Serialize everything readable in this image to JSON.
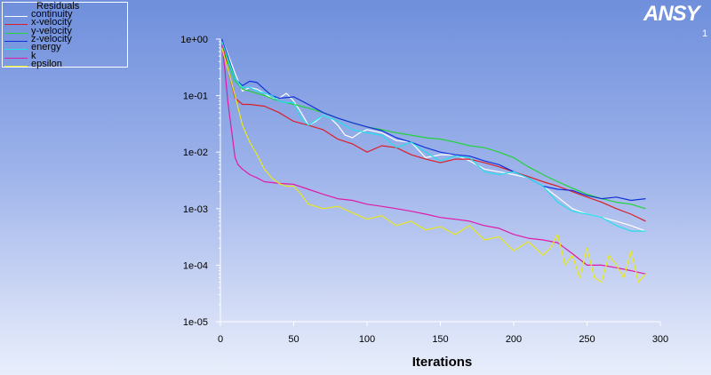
{
  "logo": {
    "text": "ANSY",
    "sub": "1"
  },
  "chart_data": {
    "type": "line",
    "title": "Residuals",
    "xlabel": "Iterations",
    "ylabel": "",
    "xlim": [
      0,
      300
    ],
    "ylim": [
      1e-05,
      1
    ],
    "yscale": "log",
    "grid": false,
    "legend_position": "top-left",
    "x_ticks": [
      "0",
      "50",
      "100",
      "150",
      "200",
      "250",
      "300"
    ],
    "y_ticks": [
      "1e+00",
      "1e-01",
      "1e-02",
      "1e-03",
      "1e-04",
      "1e-05"
    ],
    "series": [
      {
        "name": "continuity",
        "color": "#ffffff",
        "x": [
          1,
          5,
          10,
          15,
          20,
          25,
          30,
          35,
          40,
          45,
          50,
          55,
          60,
          65,
          70,
          75,
          80,
          85,
          90,
          95,
          100,
          110,
          120,
          130,
          140,
          150,
          160,
          170,
          180,
          190,
          200,
          210,
          220,
          230,
          240,
          250,
          260,
          270,
          280,
          290
        ],
        "y": [
          1.0,
          0.55,
          0.25,
          0.12,
          0.14,
          0.13,
          0.11,
          0.09,
          0.09,
          0.11,
          0.08,
          0.05,
          0.03,
          0.035,
          0.045,
          0.04,
          0.03,
          0.02,
          0.018,
          0.022,
          0.025,
          0.022,
          0.016,
          0.015,
          0.008,
          0.009,
          0.009,
          0.007,
          0.005,
          0.0045,
          0.004,
          0.0035,
          0.0025,
          0.0016,
          0.001,
          0.0008,
          0.0007,
          0.0006,
          0.0005,
          0.0004
        ]
      },
      {
        "name": "x-velocity",
        "color": "#dc1e2a",
        "x": [
          1,
          5,
          10,
          15,
          20,
          30,
          40,
          50,
          60,
          70,
          80,
          90,
          100,
          110,
          120,
          130,
          140,
          150,
          160,
          170,
          180,
          190,
          200,
          210,
          220,
          230,
          240,
          250,
          260,
          270,
          280,
          290
        ],
        "y": [
          1.0,
          0.3,
          0.09,
          0.07,
          0.07,
          0.065,
          0.05,
          0.035,
          0.03,
          0.025,
          0.017,
          0.014,
          0.01,
          0.013,
          0.012,
          0.009,
          0.0075,
          0.0065,
          0.0075,
          0.0075,
          0.0065,
          0.0055,
          0.0045,
          0.0037,
          0.003,
          0.0025,
          0.002,
          0.0016,
          0.0013,
          0.001,
          0.0008,
          0.0006
        ]
      },
      {
        "name": "y-velocity",
        "color": "#22d33a",
        "x": [
          1,
          5,
          10,
          15,
          20,
          30,
          40,
          50,
          60,
          70,
          80,
          90,
          100,
          110,
          120,
          130,
          140,
          150,
          160,
          170,
          180,
          190,
          200,
          210,
          220,
          230,
          240,
          250,
          260,
          270,
          280,
          290
        ],
        "y": [
          1.0,
          0.4,
          0.18,
          0.13,
          0.12,
          0.1,
          0.08,
          0.07,
          0.06,
          0.05,
          0.04,
          0.033,
          0.028,
          0.025,
          0.022,
          0.02,
          0.018,
          0.017,
          0.015,
          0.013,
          0.012,
          0.01,
          0.008,
          0.0055,
          0.004,
          0.003,
          0.0023,
          0.0018,
          0.0015,
          0.0013,
          0.0012,
          0.001
        ]
      },
      {
        "name": "z-velocity",
        "color": "#1230d8",
        "x": [
          1,
          5,
          10,
          15,
          20,
          25,
          30,
          35,
          40,
          50,
          60,
          70,
          80,
          90,
          100,
          110,
          120,
          130,
          140,
          150,
          160,
          170,
          180,
          190,
          200,
          210,
          220,
          230,
          240,
          250,
          260,
          270,
          280,
          290
        ],
        "y": [
          1.0,
          0.5,
          0.2,
          0.15,
          0.18,
          0.17,
          0.13,
          0.1,
          0.09,
          0.095,
          0.07,
          0.05,
          0.04,
          0.033,
          0.028,
          0.024,
          0.018,
          0.015,
          0.012,
          0.01,
          0.009,
          0.0085,
          0.007,
          0.006,
          0.0045,
          0.0035,
          0.0025,
          0.0022,
          0.0021,
          0.0017,
          0.0015,
          0.0016,
          0.0014,
          0.0015
        ]
      },
      {
        "name": "energy",
        "color": "#22e0e8",
        "x": [
          1,
          5,
          10,
          15,
          20,
          25,
          30,
          35,
          40,
          45,
          50,
          55,
          60,
          70,
          80,
          90,
          100,
          110,
          120,
          130,
          140,
          150,
          160,
          170,
          180,
          190,
          200,
          210,
          220,
          230,
          240,
          250,
          260,
          270,
          280,
          290
        ],
        "y": [
          0.9,
          0.45,
          0.2,
          0.14,
          0.14,
          0.12,
          0.11,
          0.1,
          0.08,
          0.075,
          0.075,
          0.04,
          0.03,
          0.045,
          0.035,
          0.025,
          0.022,
          0.02,
          0.012,
          0.015,
          0.01,
          0.007,
          0.0085,
          0.008,
          0.0045,
          0.004,
          0.0045,
          0.0035,
          0.0025,
          0.0013,
          0.0009,
          0.0008,
          0.0007,
          0.0005,
          0.0004,
          0.0004
        ]
      },
      {
        "name": "k",
        "color": "#e01aa8",
        "x": [
          1,
          3,
          5,
          8,
          10,
          12,
          15,
          20,
          25,
          30,
          40,
          50,
          60,
          70,
          80,
          90,
          100,
          110,
          120,
          130,
          140,
          150,
          160,
          170,
          180,
          190,
          200,
          210,
          220,
          230,
          240,
          250,
          260,
          270,
          280,
          290
        ],
        "y": [
          0.8,
          0.3,
          0.08,
          0.02,
          0.008,
          0.006,
          0.005,
          0.004,
          0.0035,
          0.003,
          0.0028,
          0.0027,
          0.0022,
          0.0018,
          0.0015,
          0.0014,
          0.0012,
          0.0011,
          0.001,
          0.0009,
          0.0008,
          0.0007,
          0.00065,
          0.0006,
          0.0005,
          0.00045,
          0.00035,
          0.0003,
          0.00028,
          0.00025,
          0.00016,
          0.0001,
          0.0001,
          9e-05,
          8e-05,
          7e-05
        ]
      },
      {
        "name": "epsilon",
        "color": "#e8e81c",
        "x": [
          1,
          5,
          10,
          15,
          20,
          25,
          30,
          35,
          40,
          45,
          50,
          55,
          60,
          70,
          80,
          90,
          100,
          110,
          120,
          130,
          140,
          150,
          160,
          170,
          180,
          190,
          200,
          210,
          220,
          225,
          230,
          235,
          240,
          245,
          250,
          255,
          260,
          265,
          270,
          275,
          280,
          285,
          290
        ],
        "y": [
          0.7,
          0.3,
          0.1,
          0.03,
          0.015,
          0.009,
          0.005,
          0.0035,
          0.0028,
          0.0025,
          0.0025,
          0.0018,
          0.0012,
          0.001,
          0.0011,
          0.00085,
          0.00065,
          0.00075,
          0.0005,
          0.0006,
          0.00042,
          0.00048,
          0.00035,
          0.0005,
          0.00028,
          0.00032,
          0.00018,
          0.00026,
          0.00015,
          0.0002,
          0.00035,
          0.0001,
          0.00015,
          6e-05,
          0.0002,
          6e-05,
          5e-05,
          0.00015,
          0.0001,
          6e-05,
          0.00018,
          5e-05,
          7e-05
        ]
      }
    ]
  }
}
